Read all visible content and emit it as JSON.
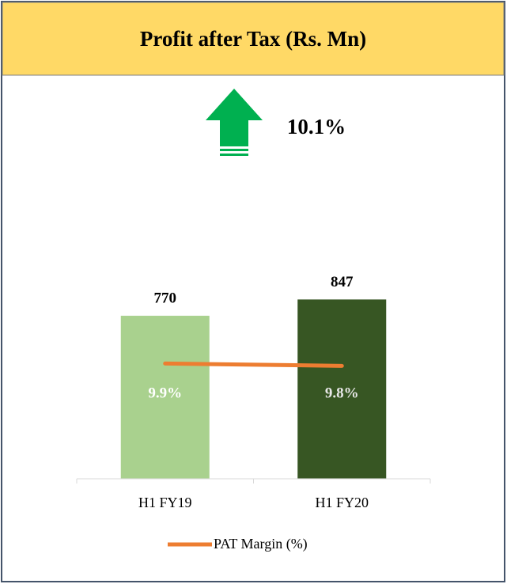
{
  "chart_data": {
    "type": "bar",
    "title": "Profit after Tax (Rs. Mn)",
    "annotation": "10.1%",
    "categories": [
      "H1 FY19",
      "H1 FY20"
    ],
    "series": [
      {
        "name": "PAT",
        "type": "bar",
        "colors": [
          "#a9d18e",
          "#375623"
        ],
        "values": [
          770,
          847
        ]
      },
      {
        "name": "PAT Margin (%)",
        "type": "line",
        "axis": "y2",
        "color": "#ed7d31",
        "values": [
          9.9,
          9.8
        ],
        "value_labels": [
          "9.9%",
          "9.8%"
        ]
      }
    ],
    "ylim": [
      0,
      1000
    ],
    "y2lim": [
      5,
      14
    ],
    "legend": "bottom"
  }
}
